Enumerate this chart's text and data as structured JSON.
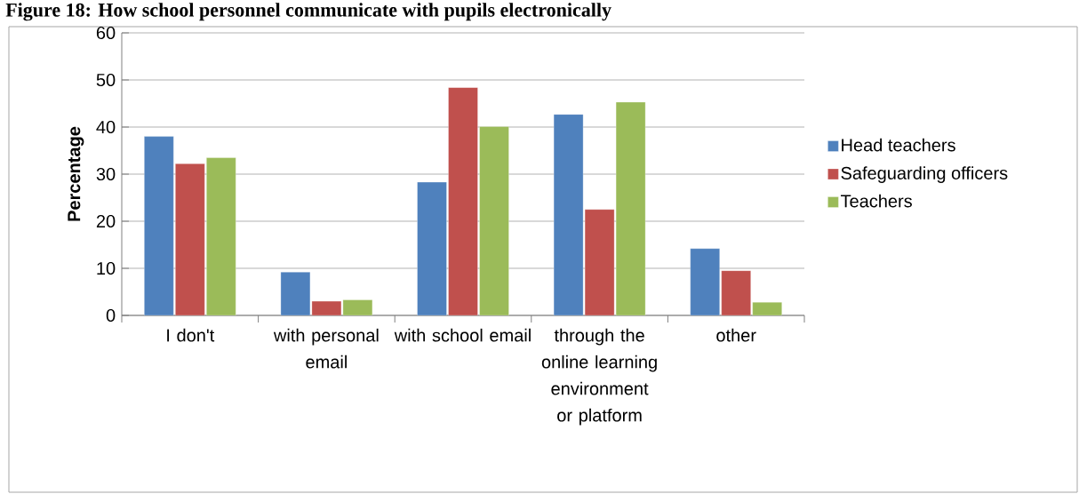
{
  "chart_data": {
    "type": "bar",
    "title": "Figure 18: How school personnel communicate with pupils electronically",
    "ylabel": "Percentage",
    "categories": [
      "I don't",
      "with personal email",
      "with school email",
      "through the online learning environment or platform",
      "other"
    ],
    "series": [
      {
        "name": "Head teachers",
        "color": "#4f81bd",
        "values": [
          38,
          9.2,
          28.3,
          42.7,
          14.2
        ]
      },
      {
        "name": "Safeguarding officers",
        "color": "#c0504d",
        "values": [
          32.2,
          3,
          48.4,
          22.5,
          9.5
        ]
      },
      {
        "name": "Teachers",
        "color": "#9bbb59",
        "values": [
          33.5,
          3.3,
          40.1,
          45.3,
          2.8
        ]
      }
    ],
    "ylim": [
      0,
      60
    ],
    "yticks": [
      0,
      10,
      20,
      30,
      40,
      50,
      60
    ],
    "grid": "y",
    "legend": "right"
  }
}
